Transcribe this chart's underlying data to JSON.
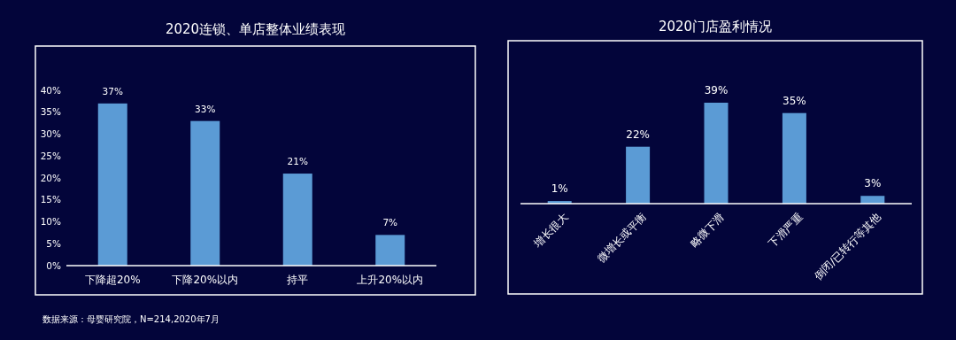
{
  "chart_data": [
    {
      "type": "bar",
      "title": "2020连锁、单店整体业绩表现",
      "categories": [
        "下降超20%",
        "下降20%以内",
        "持平",
        "上升20%以内"
      ],
      "values": [
        37,
        33,
        21,
        7
      ],
      "color": "#5b9bd5",
      "value_labels": [
        "37%",
        "33%",
        "21%",
        "7%"
      ],
      "ylim": [
        0,
        40
      ],
      "yticks": [
        {
          "value": 0,
          "label": "0%"
        },
        {
          "value": 5,
          "label": "5%"
        },
        {
          "value": 10,
          "label": "10%"
        },
        {
          "value": 15,
          "label": "15%"
        },
        {
          "value": 20,
          "label": "20%"
        },
        {
          "value": 25,
          "label": "25%"
        },
        {
          "value": 30,
          "label": "30%"
        },
        {
          "value": 35,
          "label": "35%"
        },
        {
          "value": 40,
          "label": "40%"
        }
      ],
      "grid": false,
      "annotations": [
        "数据来源：母婴研究院，N=214,2020年7月"
      ]
    },
    {
      "type": "bar",
      "title": "2020门店盈利情况",
      "categories": [
        "增长很大",
        "微增长或平衡",
        "略微下滑",
        "下滑严重",
        "倒闭/已转行等其他"
      ],
      "values": [
        1,
        22,
        39,
        35,
        3
      ],
      "color": "#5b9bd5",
      "value_labels": [
        "1%",
        "22%",
        "39%",
        "35%",
        "3%"
      ],
      "grid": false,
      "tick_labels": "x"
    }
  ]
}
